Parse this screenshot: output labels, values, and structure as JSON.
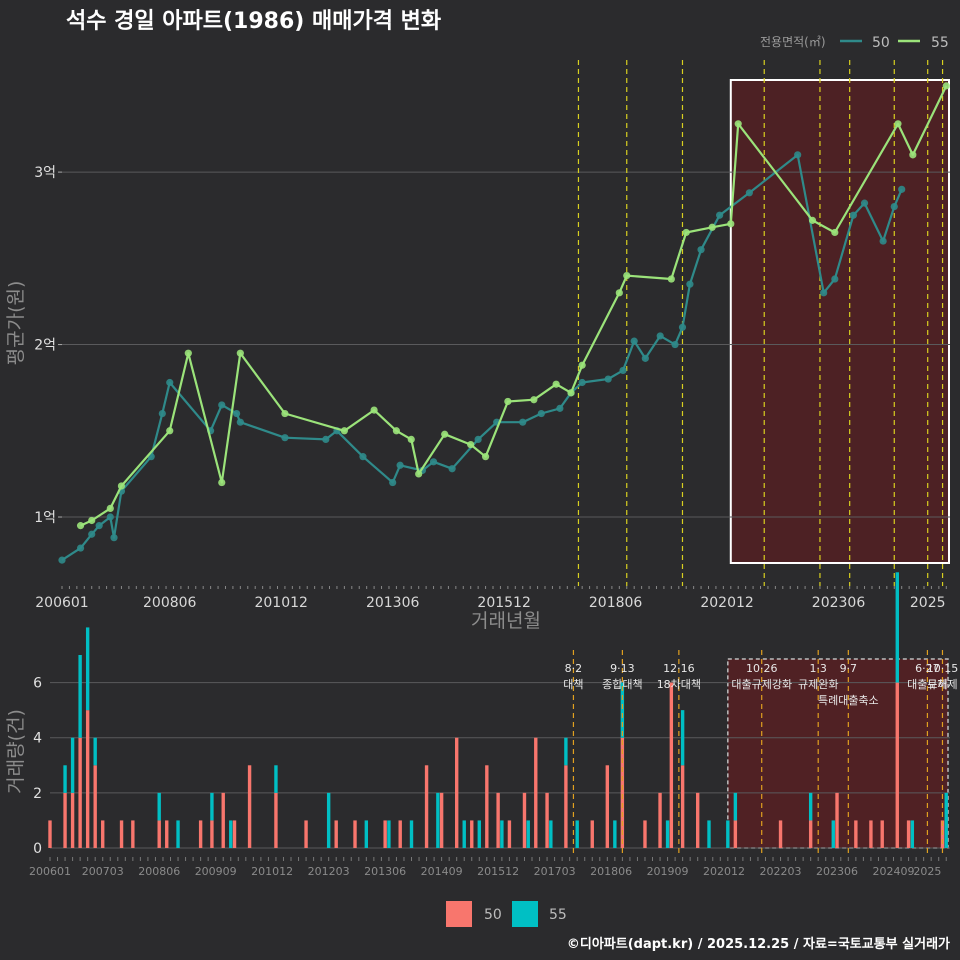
{
  "title": "석수 경일 아파트(1986) 매매가격 변화",
  "footer": "©디아파트(dapt.kr) / 2025.12.25 / 자료=국토교통부 실거래가",
  "colors": {
    "background": "#2b2b2d",
    "series_50_price": "#2f8a8a",
    "series_55_price": "#9be37a",
    "series_50_volume": "#f8766d",
    "series_55_volume": "#00bfc4",
    "policy_line_top": "#d8d020",
    "policy_line_bottom": "#e0a020",
    "highlight_fill": "#5a1f22",
    "highlight_border": "#ffffff"
  },
  "legend": {
    "title": "전용면적(㎡)",
    "items": [
      "50",
      "55"
    ]
  },
  "chart_data": [
    {
      "type": "line",
      "title": "석수 경일 아파트(1986) 매매가격 변화",
      "xlabel": "거래년월",
      "ylabel": "평균가(원)",
      "x_ticks": [
        "200601",
        "200806",
        "201012",
        "201306",
        "201512",
        "201806",
        "202012",
        "202306",
        "2025"
      ],
      "y_ticks": [
        "1억",
        "2억",
        "3억"
      ],
      "ylim_eok": [
        0.6,
        3.65
      ],
      "xlim": [
        "2006-01",
        "2025-12"
      ],
      "highlight_range": [
        "2021-01",
        "2025-12"
      ],
      "policy_dates": [
        "2017-08",
        "2018-09",
        "2019-12",
        "2021-10",
        "2023-01",
        "2023-09",
        "2024-09",
        "2025-06",
        "2025-10"
      ],
      "series": [
        {
          "name": "50",
          "points": [
            [
              "2006-01",
              0.75
            ],
            [
              "2006-06",
              0.82
            ],
            [
              "2006-09",
              0.9
            ],
            [
              "2006-11",
              0.95
            ],
            [
              "2007-02",
              1.0
            ],
            [
              "2007-03",
              0.88
            ],
            [
              "2007-05",
              1.15
            ],
            [
              "2008-01",
              1.35
            ],
            [
              "2008-04",
              1.6
            ],
            [
              "2008-06",
              1.78
            ],
            [
              "2009-05",
              1.5
            ],
            [
              "2009-08",
              1.65
            ],
            [
              "2009-12",
              1.6
            ],
            [
              "2010-01",
              1.55
            ],
            [
              "2011-01",
              1.46
            ],
            [
              "2011-12",
              1.45
            ],
            [
              "2012-03",
              1.5
            ],
            [
              "2012-10",
              1.35
            ],
            [
              "2013-06",
              1.2
            ],
            [
              "2013-08",
              1.3
            ],
            [
              "2014-02",
              1.27
            ],
            [
              "2014-05",
              1.32
            ],
            [
              "2014-10",
              1.28
            ],
            [
              "2015-05",
              1.45
            ],
            [
              "2015-10",
              1.55
            ],
            [
              "2016-05",
              1.55
            ],
            [
              "2016-10",
              1.6
            ],
            [
              "2017-03",
              1.63
            ],
            [
              "2017-06",
              1.72
            ],
            [
              "2017-09",
              1.78
            ],
            [
              "2018-04",
              1.8
            ],
            [
              "2018-08",
              1.85
            ],
            [
              "2018-11",
              2.02
            ],
            [
              "2019-02",
              1.92
            ],
            [
              "2019-06",
              2.05
            ],
            [
              "2019-10",
              2.0
            ],
            [
              "2019-12",
              2.1
            ],
            [
              "2020-02",
              2.35
            ],
            [
              "2020-05",
              2.55
            ],
            [
              "2020-10",
              2.75
            ],
            [
              "2021-06",
              2.88
            ],
            [
              "2022-07",
              3.1
            ],
            [
              "2023-02",
              2.3
            ],
            [
              "2023-05",
              2.38
            ],
            [
              "2023-10",
              2.75
            ],
            [
              "2024-01",
              2.82
            ],
            [
              "2024-06",
              2.6
            ],
            [
              "2024-09",
              2.8
            ],
            [
              "2024-11",
              2.9
            ]
          ]
        },
        {
          "name": "55",
          "points": [
            [
              "2006-06",
              0.95
            ],
            [
              "2006-09",
              0.98
            ],
            [
              "2007-02",
              1.05
            ],
            [
              "2007-05",
              1.18
            ],
            [
              "2008-06",
              1.5
            ],
            [
              "2008-11",
              1.95
            ],
            [
              "2009-08",
              1.2
            ],
            [
              "2010-01",
              1.95
            ],
            [
              "2011-01",
              1.6
            ],
            [
              "2012-05",
              1.5
            ],
            [
              "2013-01",
              1.62
            ],
            [
              "2013-07",
              1.5
            ],
            [
              "2013-11",
              1.45
            ],
            [
              "2014-01",
              1.25
            ],
            [
              "2014-08",
              1.48
            ],
            [
              "2015-03",
              1.42
            ],
            [
              "2015-07",
              1.35
            ],
            [
              "2016-01",
              1.67
            ],
            [
              "2016-08",
              1.68
            ],
            [
              "2017-02",
              1.77
            ],
            [
              "2017-06",
              1.72
            ],
            [
              "2017-09",
              1.88
            ],
            [
              "2018-07",
              2.3
            ],
            [
              "2018-09",
              2.4
            ],
            [
              "2019-09",
              2.38
            ],
            [
              "2020-01",
              2.65
            ],
            [
              "2020-08",
              2.68
            ],
            [
              "2021-01",
              2.7
            ],
            [
              "2021-03",
              3.28
            ],
            [
              "2022-11",
              2.72
            ],
            [
              "2023-05",
              2.65
            ],
            [
              "2024-10",
              3.28
            ],
            [
              "2025-02",
              3.1
            ],
            [
              "2025-11",
              3.5
            ]
          ]
        }
      ]
    },
    {
      "type": "bar",
      "xlabel": "",
      "ylabel": "거래량(건)",
      "y_ticks": [
        "0",
        "2",
        "4",
        "6"
      ],
      "ylim": [
        0,
        7
      ],
      "x_ticks": [
        "200601",
        "200703",
        "200806",
        "200909",
        "201012",
        "201203",
        "201306",
        "201409",
        "201512",
        "201703",
        "201806",
        "201909",
        "202012",
        "202203",
        "202306",
        "202409",
        "2025"
      ],
      "policies": [
        {
          "date": "2017-08",
          "label": "8·2 대책"
        },
        {
          "date": "2018-09",
          "label": "9·13 종합대책"
        },
        {
          "date": "2019-12",
          "label": "12·16 18차대책"
        },
        {
          "date": "2021-10",
          "label": "10·26 대출규제강화"
        },
        {
          "date": "2023-01",
          "label": "1·3 규제완화"
        },
        {
          "date": "2023-09",
          "label": "9·7 특례대출축소"
        },
        {
          "date": "2025-06",
          "label": "6·27 대출규제"
        },
        {
          "date": "2025-10",
          "label": "10·15 토허제"
        }
      ],
      "series": [
        {
          "name": "50",
          "bars": [
            [
              "2006-01",
              1
            ],
            [
              "2006-05",
              2
            ],
            [
              "2006-07",
              2
            ],
            [
              "2006-09",
              4
            ],
            [
              "2006-11",
              5
            ],
            [
              "2007-01",
              3
            ],
            [
              "2007-03",
              1
            ],
            [
              "2007-08",
              1
            ],
            [
              "2007-11",
              1
            ],
            [
              "2008-06",
              1
            ],
            [
              "2008-08",
              1
            ],
            [
              "2009-05",
              1
            ],
            [
              "2009-08",
              1
            ],
            [
              "2009-11",
              2
            ],
            [
              "2010-02",
              1
            ],
            [
              "2010-06",
              3
            ],
            [
              "2011-01",
              2
            ],
            [
              "2011-09",
              1
            ],
            [
              "2012-05",
              1
            ],
            [
              "2012-10",
              1
            ],
            [
              "2013-06",
              1
            ],
            [
              "2013-10",
              1
            ],
            [
              "2014-05",
              3
            ],
            [
              "2014-09",
              2
            ],
            [
              "2015-01",
              4
            ],
            [
              "2015-05",
              1
            ],
            [
              "2015-09",
              3
            ],
            [
              "2015-12",
              2
            ],
            [
              "2016-03",
              1
            ],
            [
              "2016-07",
              2
            ],
            [
              "2016-10",
              4
            ],
            [
              "2017-01",
              2
            ],
            [
              "2017-06",
              3
            ],
            [
              "2018-01",
              1
            ],
            [
              "2018-05",
              3
            ],
            [
              "2018-09",
              4
            ],
            [
              "2019-03",
              1
            ],
            [
              "2019-07",
              2
            ],
            [
              "2019-10",
              6
            ],
            [
              "2020-01",
              3
            ],
            [
              "2020-05",
              2
            ],
            [
              "2021-03",
              1
            ],
            [
              "2022-03",
              1
            ],
            [
              "2022-11",
              1
            ],
            [
              "2023-06",
              2
            ],
            [
              "2023-11",
              1
            ],
            [
              "2024-03",
              1
            ],
            [
              "2024-06",
              1
            ],
            [
              "2024-10",
              6
            ],
            [
              "2025-01",
              1
            ],
            [
              "2025-10",
              1
            ]
          ]
        },
        {
          "name": "55",
          "bars": [
            [
              "2006-05",
              1
            ],
            [
              "2006-07",
              2
            ],
            [
              "2006-09",
              3
            ],
            [
              "2006-11",
              3
            ],
            [
              "2007-01",
              1
            ],
            [
              "2008-06",
              1
            ],
            [
              "2008-11",
              1
            ],
            [
              "2009-08",
              1
            ],
            [
              "2010-01",
              1
            ],
            [
              "2011-01",
              1
            ],
            [
              "2012-03",
              2
            ],
            [
              "2013-01",
              1
            ],
            [
              "2013-07",
              1
            ],
            [
              "2014-01",
              1
            ],
            [
              "2014-08",
              2
            ],
            [
              "2015-03",
              1
            ],
            [
              "2015-07",
              1
            ],
            [
              "2016-01",
              1
            ],
            [
              "2016-08",
              1
            ],
            [
              "2017-02",
              1
            ],
            [
              "2017-06",
              1
            ],
            [
              "2017-09",
              1
            ],
            [
              "2018-07",
              1
            ],
            [
              "2018-09",
              2
            ],
            [
              "2019-09",
              1
            ],
            [
              "2020-01",
              2
            ],
            [
              "2020-08",
              1
            ],
            [
              "2021-01",
              1
            ],
            [
              "2021-03",
              1
            ],
            [
              "2022-11",
              1
            ],
            [
              "2023-05",
              1
            ],
            [
              "2024-10",
              4
            ],
            [
              "2025-02",
              1
            ],
            [
              "2025-11",
              2
            ]
          ]
        }
      ]
    }
  ]
}
